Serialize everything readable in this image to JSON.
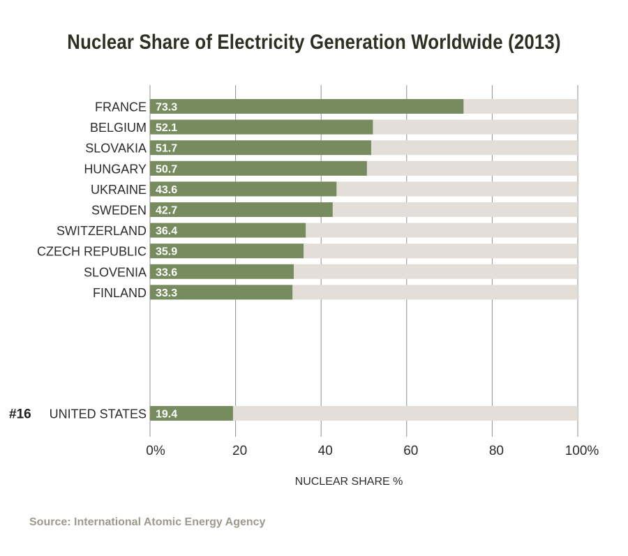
{
  "chart_data": {
    "type": "bar",
    "orientation": "horizontal",
    "stacked_background": true,
    "title": "Nuclear Share of Electricity Generation Worldwide (2013)",
    "xlabel": "NUCLEAR SHARE %",
    "ylabel": "",
    "xlim": [
      0,
      100
    ],
    "x_ticks": [
      "0%",
      "20",
      "40",
      "60",
      "80",
      "100%"
    ],
    "x_tick_values": [
      0,
      20,
      40,
      60,
      80,
      100
    ],
    "grid": "vertical",
    "categories": [
      "FRANCE",
      "BELGIUM",
      "SLOVAKIA",
      "HUNGARY",
      "UKRAINE",
      "SWEDEN",
      "SWITZERLAND",
      "CZECH REPUBLIC",
      "SLOVENIA",
      "FINLAND",
      "UNITED STATES"
    ],
    "rank_labels": [
      "",
      "",
      "",
      "",
      "",
      "",
      "",
      "",
      "",
      "",
      "#16"
    ],
    "values": [
      73.3,
      52.1,
      51.7,
      50.7,
      43.6,
      42.7,
      36.4,
      35.9,
      33.6,
      33.3,
      19.4
    ],
    "value_labels": [
      "73.3",
      "52.1",
      "51.7",
      "50.7",
      "43.6",
      "42.7",
      "36.4",
      "35.9",
      "33.6",
      "33.3",
      "19.4"
    ],
    "colors": {
      "bar": "#768c5e",
      "track": "#e3ded8",
      "grid": "#8e8e8e",
      "text": "#2b2b2b"
    }
  },
  "source": "Source: International Atomic Energy Agency"
}
